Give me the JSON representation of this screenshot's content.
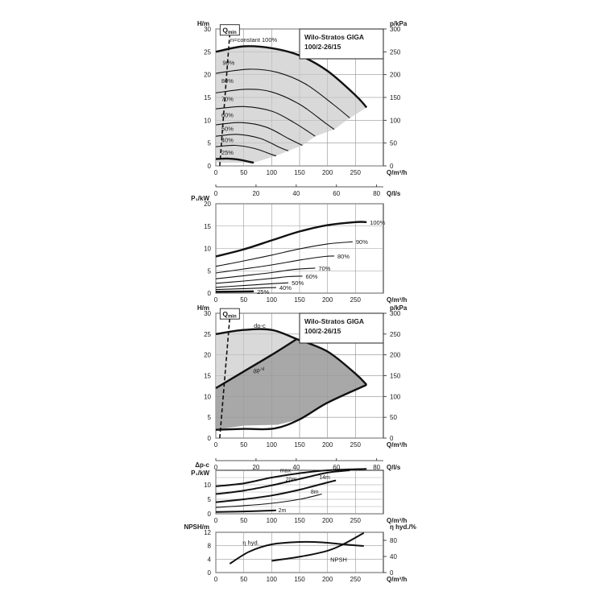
{
  "colors": {
    "grid": "#9a9a9a",
    "curve": "#111111",
    "fill_light": "#d9d9d9",
    "fill_dark": "#a8a8a8",
    "frame": "#222222"
  },
  "chart_data": [
    {
      "id": "pump-curves",
      "type": "line",
      "title": "Wilo-Stratos GIGA",
      "subtitle": "100/2-26/15",
      "xlabel": "Q/m³/h",
      "ylabel": "H/m",
      "ylabel_right": "p/kPa",
      "xlabel_secondary": "Q/l/s",
      "xlim": [
        0,
        300
      ],
      "ylim": [
        0,
        30
      ],
      "xticks": [
        0,
        50,
        100,
        150,
        200,
        250
      ],
      "yticks": [
        0,
        5,
        10,
        15,
        20,
        25,
        30
      ],
      "yticks_right": [
        0,
        50,
        100,
        150,
        200,
        250,
        300
      ],
      "xticks_secondary": [
        0,
        20,
        40,
        60,
        80
      ],
      "qmin_label": "Q",
      "qmin_sub": "min",
      "qmin_line": [
        [
          7,
          0
        ],
        [
          25,
          29
        ]
      ],
      "series": [
        {
          "name": "n=constant 100%",
          "label": "n=constant 100%",
          "label_at": [
            26,
            27
          ],
          "bold": true,
          "points": [
            [
              0,
              25.0
            ],
            [
              50,
              26.2
            ],
            [
              100,
              25.8
            ],
            [
              150,
              24.2
            ],
            [
              200,
              20.8
            ],
            [
              250,
              15.5
            ],
            [
              270,
              12.8
            ]
          ]
        },
        {
          "name": "90%",
          "label": "90%",
          "label_at": [
            12,
            22
          ],
          "points": [
            [
              0,
              20.3
            ],
            [
              60,
              21.2
            ],
            [
              110,
              20.5
            ],
            [
              160,
              18.0
            ],
            [
              210,
              13.5
            ],
            [
              240,
              10.5
            ]
          ]
        },
        {
          "name": "80%",
          "label": "80%",
          "label_at": [
            10,
            18
          ],
          "points": [
            [
              0,
              16.0
            ],
            [
              55,
              16.8
            ],
            [
              100,
              16.2
            ],
            [
              150,
              13.5
            ],
            [
              195,
              9.5
            ],
            [
              212,
              8.0
            ]
          ]
        },
        {
          "name": "70%",
          "label": "70%",
          "label_at": [
            10,
            14
          ],
          "points": [
            [
              0,
              12.5
            ],
            [
              50,
              13.0
            ],
            [
              100,
              12.0
            ],
            [
              140,
              9.5
            ],
            [
              178,
              6.5
            ]
          ]
        },
        {
          "name": "60%",
          "label": "60%",
          "label_at": [
            10,
            10.5
          ],
          "points": [
            [
              0,
              9.0
            ],
            [
              45,
              9.5
            ],
            [
              90,
              8.5
            ],
            [
              130,
              6.0
            ],
            [
              155,
              4.5
            ]
          ]
        },
        {
          "name": "50%",
          "label": "50%",
          "label_at": [
            10,
            7.5
          ],
          "points": [
            [
              0,
              6.5
            ],
            [
              40,
              6.9
            ],
            [
              80,
              6.0
            ],
            [
              115,
              4.0
            ],
            [
              130,
              3.3
            ]
          ]
        },
        {
          "name": "40%",
          "label": "40%",
          "label_at": [
            10,
            5
          ],
          "points": [
            [
              0,
              4.2
            ],
            [
              35,
              4.5
            ],
            [
              70,
              3.8
            ],
            [
              100,
              2.5
            ],
            [
              108,
              2.2
            ]
          ]
        },
        {
          "name": "25%",
          "label": "25%",
          "label_at": [
            10,
            2.3
          ],
          "bold": true,
          "points": [
            [
              0,
              1.5
            ],
            [
              20,
              1.6
            ],
            [
              40,
              1.4
            ],
            [
              60,
              0.9
            ],
            [
              68,
              0.7
            ]
          ]
        }
      ],
      "operating_region": [
        [
          0,
          25.0
        ],
        [
          50,
          26.2
        ],
        [
          100,
          25.8
        ],
        [
          150,
          24.2
        ],
        [
          200,
          20.8
        ],
        [
          250,
          15.5
        ],
        [
          270,
          12.8
        ],
        [
          240,
          10.5
        ],
        [
          212,
          8.0
        ],
        [
          178,
          6.5
        ],
        [
          155,
          4.5
        ],
        [
          130,
          3.3
        ],
        [
          108,
          2.2
        ],
        [
          68,
          0.7
        ],
        [
          0,
          0.7
        ]
      ]
    },
    {
      "id": "power-curves",
      "type": "line",
      "ylabel": "P₁/kW",
      "xlabel": "Q/m³/h",
      "xlim": [
        0,
        300
      ],
      "ylim": [
        0,
        20
      ],
      "xticks": [
        0,
        50,
        100,
        150,
        200,
        250
      ],
      "yticks": [
        0,
        5,
        10,
        15,
        20
      ],
      "series": [
        {
          "name": "100%",
          "label": "100%",
          "bold": true,
          "points": [
            [
              0,
              8.2
            ],
            [
              50,
              9.8
            ],
            [
              100,
              11.8
            ],
            [
              150,
              13.8
            ],
            [
              200,
              15.2
            ],
            [
              250,
              15.9
            ],
            [
              270,
              15.9
            ]
          ]
        },
        {
          "name": "90%",
          "label": "90%",
          "points": [
            [
              0,
              6.0
            ],
            [
              50,
              7.2
            ],
            [
              100,
              8.5
            ],
            [
              150,
              9.9
            ],
            [
              200,
              11.0
            ],
            [
              245,
              11.5
            ]
          ]
        },
        {
          "name": "80%",
          "label": "80%",
          "points": [
            [
              0,
              4.5
            ],
            [
              50,
              5.4
            ],
            [
              100,
              6.3
            ],
            [
              150,
              7.4
            ],
            [
              195,
              8.2
            ],
            [
              212,
              8.3
            ]
          ]
        },
        {
          "name": "70%",
          "label": "70%",
          "points": [
            [
              0,
              3.2
            ],
            [
              50,
              3.9
            ],
            [
              100,
              4.6
            ],
            [
              140,
              5.3
            ],
            [
              178,
              5.6
            ]
          ]
        },
        {
          "name": "60%",
          "label": "60%",
          "points": [
            [
              0,
              2.2
            ],
            [
              50,
              2.7
            ],
            [
              100,
              3.3
            ],
            [
              130,
              3.7
            ],
            [
              155,
              3.8
            ]
          ]
        },
        {
          "name": "50%",
          "label": "50%",
          "points": [
            [
              0,
              1.3
            ],
            [
              50,
              1.7
            ],
            [
              100,
              2.1
            ],
            [
              130,
              2.3
            ]
          ]
        },
        {
          "name": "40%",
          "label": "40%",
          "points": [
            [
              0,
              0.8
            ],
            [
              50,
              1.0
            ],
            [
              90,
              1.2
            ],
            [
              108,
              1.25
            ]
          ]
        },
        {
          "name": "25%",
          "label": "25%",
          "bold": true,
          "points": [
            [
              0,
              0.3
            ],
            [
              40,
              0.35
            ],
            [
              68,
              0.4
            ]
          ]
        }
      ]
    },
    {
      "id": "control-mode-curves",
      "type": "area",
      "title": "Wilo-Stratos GIGA",
      "subtitle": "100/2-26/15",
      "xlabel": "Q/m³/h",
      "ylabel": "H/m",
      "ylabel_right": "p/kPa",
      "xlabel_secondary": "Q/l/s",
      "xlim": [
        0,
        300
      ],
      "ylim": [
        0,
        30
      ],
      "xticks": [
        0,
        50,
        100,
        150,
        200,
        250
      ],
      "yticks": [
        0,
        5,
        10,
        15,
        20,
        25,
        30
      ],
      "yticks_right": [
        0,
        50,
        100,
        150,
        200,
        250,
        300
      ],
      "xticks_secondary": [
        0,
        20,
        40,
        60,
        80
      ],
      "qmin_label": "Q",
      "qmin_sub": "min",
      "qmin_line": [
        [
          7,
          0
        ],
        [
          25,
          29
        ]
      ],
      "dp_c_label": "dp-c",
      "dp_v_label": "dp-v",
      "dp_c_region": [
        [
          0,
          25.0
        ],
        [
          50,
          26.0
        ],
        [
          100,
          26.0
        ],
        [
          145,
          23.8
        ],
        [
          100,
          20.0
        ],
        [
          0,
          12.0
        ]
      ],
      "dp_v_region": [
        [
          0,
          12.0
        ],
        [
          100,
          20.0
        ],
        [
          145,
          23.8
        ],
        [
          200,
          20.8
        ],
        [
          250,
          15.5
        ],
        [
          270,
          12.8
        ],
        [
          200,
          8.5
        ],
        [
          150,
          4.5
        ],
        [
          110,
          3.2
        ],
        [
          50,
          3.0
        ],
        [
          0,
          2.0
        ]
      ],
      "boundary_max": [
        [
          0,
          25.0
        ],
        [
          50,
          26.0
        ],
        [
          100,
          26.0
        ],
        [
          145,
          23.8
        ],
        [
          200,
          20.8
        ],
        [
          250,
          15.5
        ],
        [
          270,
          12.8
        ]
      ],
      "boundary_min": [
        [
          0,
          2.0
        ],
        [
          50,
          2.2
        ],
        [
          105,
          2.3
        ],
        [
          150,
          4.5
        ],
        [
          200,
          8.5
        ],
        [
          270,
          12.8
        ]
      ],
      "boundary_dpv": [
        [
          0,
          12.0
        ],
        [
          50,
          16.0
        ],
        [
          100,
          20.0
        ],
        [
          145,
          23.8
        ]
      ]
    },
    {
      "id": "dpc-power",
      "type": "line",
      "ylabel": "Δp-c",
      "ylabel2": "P₁/kW",
      "xlabel": "Q/m³/h",
      "xlim": [
        0,
        300
      ],
      "ylim": [
        0,
        15
      ],
      "xticks": [
        0,
        50,
        100,
        150,
        200,
        250
      ],
      "yticks": [
        0,
        5,
        10
      ],
      "yticks_extra": [
        2.5,
        7.5,
        12.5
      ],
      "series": [
        {
          "name": "max.",
          "label": "max.",
          "bold": true,
          "points": [
            [
              0,
              9.5
            ],
            [
              50,
              10.5
            ],
            [
              100,
              12.5
            ],
            [
              150,
              14.0
            ],
            [
              200,
              15.0
            ],
            [
              270,
              15.5
            ]
          ]
        },
        {
          "name": "20m",
          "label": "20m",
          "bold": true,
          "points": [
            [
              0,
              6.8
            ],
            [
              50,
              8.0
            ],
            [
              100,
              9.8
            ],
            [
              150,
              12.0
            ],
            [
              200,
              14.2
            ],
            [
              240,
              15.0
            ]
          ]
        },
        {
          "name": "14m",
          "label": "14m",
          "bold": true,
          "points": [
            [
              0,
              4.0
            ],
            [
              50,
              5.0
            ],
            [
              100,
              6.3
            ],
            [
              150,
              8.3
            ],
            [
              200,
              10.8
            ],
            [
              215,
              11.5
            ]
          ]
        },
        {
          "name": "8m",
          "label": "8m",
          "bold": false,
          "points": [
            [
              0,
              2.2
            ],
            [
              50,
              2.8
            ],
            [
              100,
              3.6
            ],
            [
              150,
              5.0
            ],
            [
              190,
              6.8
            ]
          ]
        },
        {
          "name": "2m",
          "label": "2m",
          "bold": true,
          "points": [
            [
              0,
              0.6
            ],
            [
              50,
              0.8
            ],
            [
              100,
              1.1
            ],
            [
              108,
              1.2
            ]
          ]
        }
      ]
    },
    {
      "id": "npsh-efficiency",
      "type": "line",
      "ylabel": "NPSH/m",
      "ylabel_right": "η hyd./%",
      "xlabel": "Q/m³/h",
      "xlim": [
        0,
        300
      ],
      "ylim": [
        0,
        12
      ],
      "xticks": [
        0,
        50,
        100,
        150,
        200,
        250
      ],
      "yticks": [
        0,
        4,
        8,
        12
      ],
      "yticks_right": [
        0,
        40,
        80
      ],
      "series": [
        {
          "name": "η hyd.",
          "label": "η hyd.",
          "axis": "right",
          "points": [
            [
              25,
              22
            ],
            [
              60,
              52
            ],
            [
              100,
              70
            ],
            [
              150,
              76
            ],
            [
              190,
              75
            ],
            [
              230,
              70
            ],
            [
              265,
              66
            ]
          ]
        },
        {
          "name": "NPSH",
          "label": "NPSH",
          "axis": "left",
          "points": [
            [
              100,
              3.5
            ],
            [
              150,
              4.7
            ],
            [
              200,
              6.5
            ],
            [
              230,
              8.6
            ],
            [
              265,
              11.8
            ]
          ]
        }
      ]
    }
  ]
}
